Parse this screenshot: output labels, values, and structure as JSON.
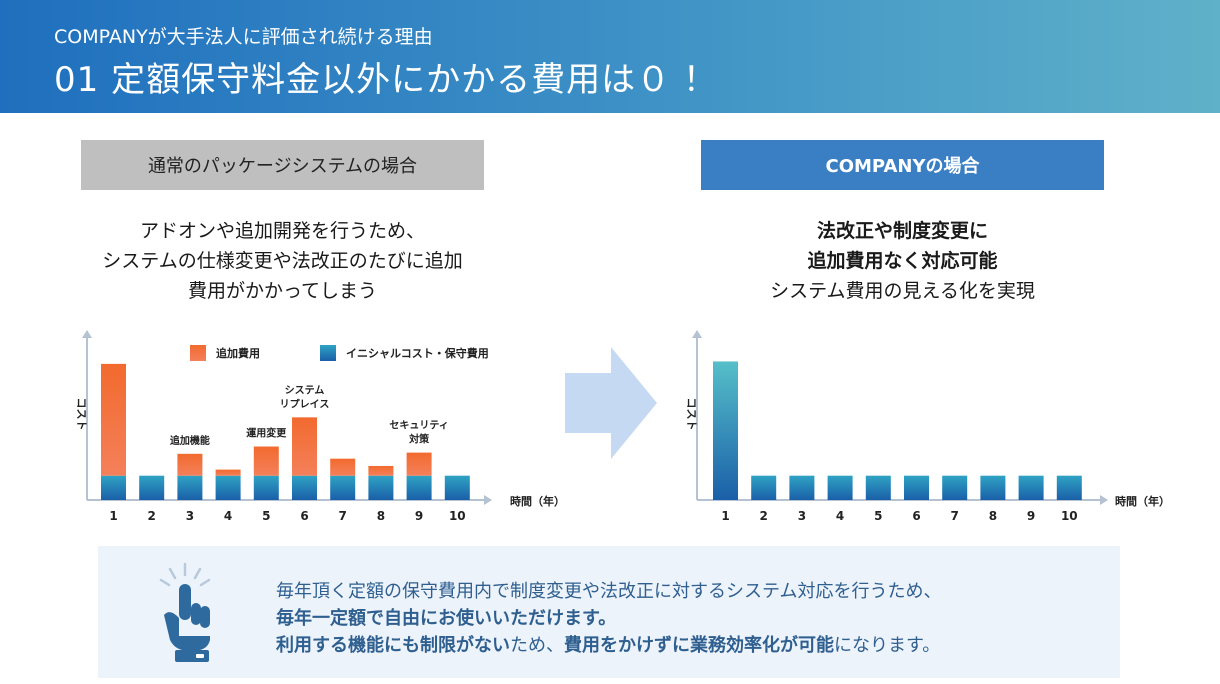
{
  "header": {
    "subtitle": "COMPANYが大手法人に評価され続ける理由",
    "title": "01 定額保守料金以外にかかる費用は０ ！"
  },
  "left_panel": {
    "label": "通常のパッケージシステムの場合",
    "description": [
      "アドオンや追加開発を行うため、",
      "システムの仕様変更や法改正のたびに追加",
      "費用がかかってしまう"
    ]
  },
  "right_panel": {
    "label": "COMPANYの場合",
    "description_bold": [
      "法改正や制度変更に",
      "追加費用なく対応可能"
    ],
    "description": "システム費用の見える化を実現"
  },
  "chart_data": [
    {
      "type": "bar",
      "stacked": true,
      "categories": [
        "1",
        "2",
        "3",
        "4",
        "5",
        "6",
        "7",
        "8",
        "9",
        "10"
      ],
      "series": [
        {
          "name": "イニシャルコスト・保守費用",
          "values": [
            1.0,
            1.0,
            1.0,
            1.0,
            1.0,
            1.0,
            1.0,
            1.0,
            1.0,
            1.0
          ],
          "color": "#1f77b8"
        },
        {
          "name": "追加費用",
          "values": [
            4.6,
            0,
            0.9,
            0.25,
            1.2,
            2.4,
            0.7,
            0.4,
            0.95,
            0
          ],
          "color": "#f0613c"
        }
      ],
      "ylabel": "コスト",
      "xlabel": "時間（年）",
      "ylim": [
        0,
        6.5
      ],
      "legend_position": "top",
      "annotations": [
        {
          "category": "3",
          "text": [
            "追加機能"
          ]
        },
        {
          "category": "5",
          "text": [
            "運用変更"
          ]
        },
        {
          "category": "6",
          "text": [
            "システム",
            "リプレイス"
          ]
        },
        {
          "category": "9",
          "text": [
            "セキュリティ",
            "対策"
          ]
        }
      ]
    },
    {
      "type": "bar",
      "categories": [
        "1",
        "2",
        "3",
        "4",
        "5",
        "6",
        "7",
        "8",
        "9",
        "10"
      ],
      "series": [
        {
          "values": [
            5.7,
            1.0,
            1.0,
            1.0,
            1.0,
            1.0,
            1.0,
            1.0,
            1.0,
            1.0
          ],
          "color": "#1f77b8"
        }
      ],
      "ylabel": "コスト",
      "xlabel": "時間（年）",
      "ylim": [
        0,
        6.5
      ]
    }
  ],
  "note": {
    "line1": "毎年頂く定額の保守費用内で制度変更や法改正に対するシステム対応を行うため、",
    "line2": "毎年一定額で自由にお使いいただけます。",
    "line3_bold1": "利用する機能にも制限がない",
    "line3_normal1": "ため、",
    "line3_bold2": "費用をかけずに業務効率化が可能",
    "line3_normal2": "になります。"
  },
  "colors": {
    "header_start": "#1f6fbe",
    "header_end": "#5fb1c9",
    "additional_cost": "#f0613c",
    "base_cost": "#1f77b8",
    "company_label_bg": "#3a7fc4",
    "normal_label_bg": "#bfbfbf",
    "note_text": "#2f5f8f",
    "note_bg": "#edf3fb"
  },
  "icons": [
    "arrow-right-icon",
    "pointing-hand-icon"
  ]
}
